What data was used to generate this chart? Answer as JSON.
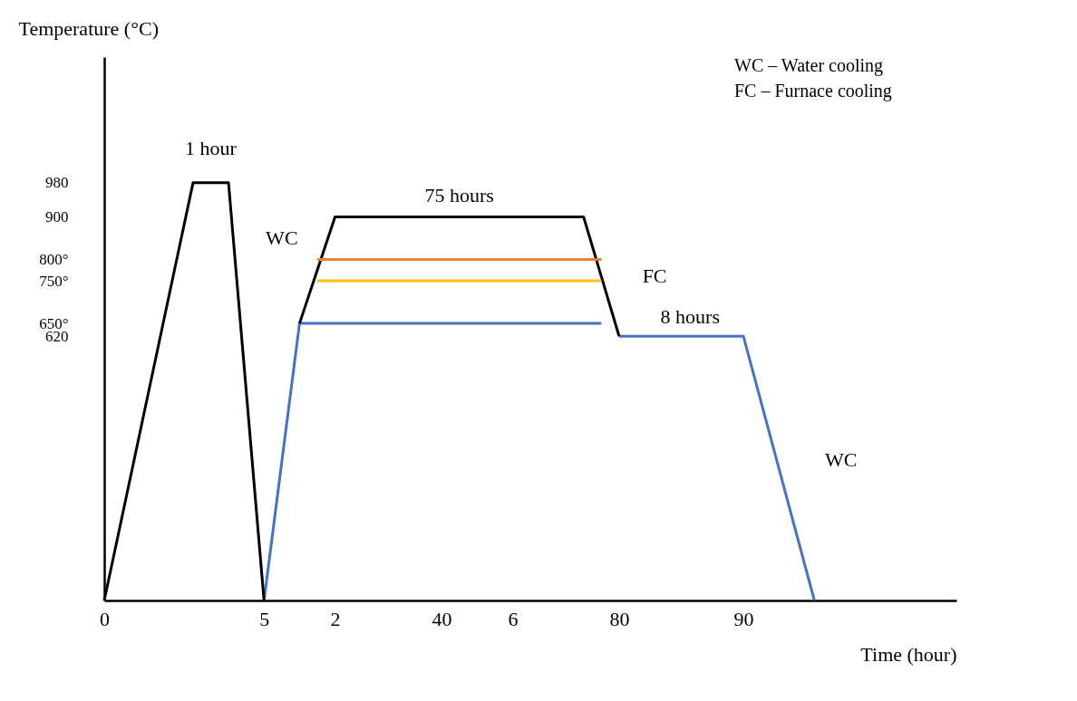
{
  "chart_data": {
    "type": "line",
    "xlabel": "Time (hour)",
    "ylabel": "Temperature (°C)",
    "grid": false,
    "categories": [
      "0",
      null,
      null,
      null,
      null,
      null,
      null,
      null,
      null,
      "5",
      null,
      null,
      null,
      "2",
      null,
      null,
      null,
      null,
      null,
      "40",
      null,
      null,
      null,
      "6",
      null,
      null,
      null,
      null,
      null,
      "80",
      null,
      null,
      null,
      null,
      null,
      null,
      "90",
      null,
      null,
      null,
      null,
      null,
      null,
      null,
      null,
      null,
      null,
      null,
      null
    ],
    "ylim": [
      0,
      1275
    ],
    "yticks": [
      {
        "value": 620,
        "label": "620"
      },
      {
        "value": 650,
        "label": "650°"
      },
      {
        "value": 750,
        "label": "750°"
      },
      {
        "value": 800,
        "label": "800°"
      },
      {
        "value": 900,
        "label": "900"
      },
      {
        "value": 980,
        "label": "980"
      }
    ],
    "series": [
      {
        "color": "#4472c4",
        "values": [
          null,
          null,
          null,
          null,
          null,
          null,
          null,
          null,
          null,
          0,
          325,
          650,
          650,
          650,
          650,
          650,
          650,
          650,
          650,
          650,
          650,
          650,
          650,
          650,
          650,
          650,
          650,
          650,
          650,
          null,
          null,
          null,
          null,
          null,
          null,
          null,
          null,
          null,
          null,
          null,
          null,
          null,
          null,
          null,
          null,
          null,
          null,
          null,
          null
        ]
      },
      {
        "color": "#4472c4",
        "values": [
          null,
          null,
          null,
          null,
          null,
          null,
          null,
          null,
          null,
          null,
          null,
          null,
          null,
          null,
          null,
          null,
          null,
          null,
          null,
          null,
          null,
          null,
          null,
          null,
          null,
          null,
          null,
          null,
          null,
          620,
          620,
          620,
          620,
          620,
          620,
          620,
          620,
          465,
          310,
          155,
          0,
          null,
          null,
          null,
          null,
          null,
          null,
          null,
          null
        ]
      },
      {
        "color": "#000000",
        "values": [
          0,
          196,
          392,
          588,
          784,
          980,
          980,
          980,
          490,
          0,
          null,
          null,
          null,
          null,
          null,
          null,
          null,
          null,
          null,
          null,
          null,
          null,
          null,
          null,
          null,
          null,
          null,
          null,
          null,
          null,
          null,
          null,
          null,
          null,
          null,
          null,
          null,
          null,
          null,
          null,
          null,
          null,
          null,
          null,
          null,
          null,
          null,
          null,
          null
        ]
      },
      {
        "color": "#000000",
        "values": [
          null,
          null,
          null,
          null,
          null,
          null,
          null,
          null,
          null,
          null,
          null,
          650,
          775,
          900,
          900,
          900,
          900,
          900,
          900,
          900,
          900,
          900,
          900,
          900,
          900,
          900,
          900,
          900,
          760,
          620,
          null,
          null,
          null,
          null,
          null,
          null,
          null,
          null,
          null,
          null,
          null,
          null,
          null,
          null,
          null,
          null,
          null,
          null,
          null
        ]
      },
      {
        "color": "#ed7d31",
        "values": [
          null,
          null,
          null,
          null,
          null,
          null,
          null,
          null,
          null,
          null,
          null,
          null,
          800,
          800,
          800,
          800,
          800,
          800,
          800,
          800,
          800,
          800,
          800,
          800,
          800,
          800,
          800,
          800,
          800,
          null,
          null,
          null,
          null,
          null,
          null,
          null,
          null,
          null,
          null,
          null,
          null,
          null,
          null,
          null,
          null,
          null,
          null,
          null,
          null
        ]
      },
      {
        "color": "#ffc000",
        "values": [
          null,
          null,
          null,
          null,
          null,
          null,
          null,
          null,
          null,
          null,
          null,
          null,
          750,
          750,
          750,
          750,
          750,
          750,
          750,
          750,
          750,
          750,
          750,
          750,
          750,
          750,
          750,
          750,
          750,
          null,
          null,
          null,
          null,
          null,
          null,
          null,
          null,
          null,
          null,
          null,
          null,
          null,
          null,
          null,
          null,
          null,
          null,
          null,
          null
        ]
      }
    ],
    "annotations": [
      "1 hour",
      "75 hours",
      "WC",
      "FC",
      "8 hours",
      "WC",
      "WC – Water cooling",
      "FC – Furnace cooling"
    ]
  }
}
